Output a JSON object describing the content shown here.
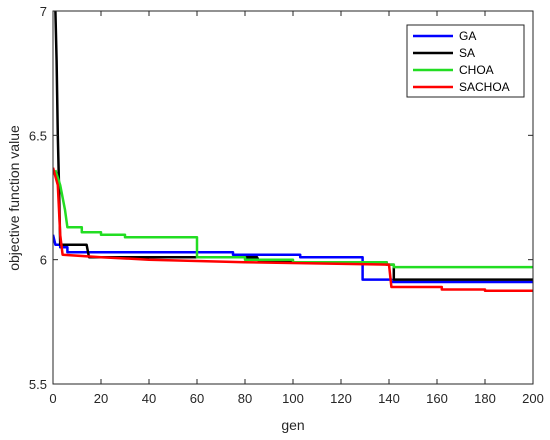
{
  "chart_data": {
    "type": "line",
    "xlabel": "gen",
    "ylabel": "objective function value",
    "xlim": [
      0,
      200
    ],
    "ylim": [
      5.5,
      7
    ],
    "xticks": [
      0,
      20,
      40,
      60,
      80,
      100,
      120,
      140,
      160,
      180,
      200
    ],
    "yticks": [
      5.5,
      6,
      6.5,
      7
    ],
    "ytick_labels": [
      "5.5",
      "6",
      "6.5",
      "7"
    ],
    "grid": false,
    "legend_position": "top-right",
    "series": [
      {
        "name": "GA",
        "color": "#0000ff",
        "points": [
          [
            0,
            6.1
          ],
          [
            1,
            6.06
          ],
          [
            3,
            6.06
          ],
          [
            3,
            6.05
          ],
          [
            6,
            6.05
          ],
          [
            6,
            6.03
          ],
          [
            75,
            6.03
          ],
          [
            75,
            6.02
          ],
          [
            103,
            6.02
          ],
          [
            103,
            6.01
          ],
          [
            129,
            6.01
          ],
          [
            129,
            5.92
          ],
          [
            141,
            5.92
          ],
          [
            141,
            5.91
          ],
          [
            200,
            5.91
          ]
        ]
      },
      {
        "name": "SA",
        "color": "#000000",
        "points": [
          [
            1,
            7.0
          ],
          [
            1.5,
            6.8
          ],
          [
            2,
            6.5
          ],
          [
            2.5,
            6.3
          ],
          [
            3,
            6.06
          ],
          [
            14,
            6.06
          ],
          [
            15,
            6.01
          ],
          [
            85,
            6.01
          ],
          [
            86,
            5.99
          ],
          [
            139,
            5.99
          ],
          [
            139,
            5.98
          ],
          [
            142,
            5.98
          ],
          [
            142,
            5.92
          ],
          [
            200,
            5.92
          ]
        ]
      },
      {
        "name": "CHOA",
        "color": "#22dd22",
        "points": [
          [
            1,
            6.36
          ],
          [
            3,
            6.3
          ],
          [
            5,
            6.2
          ],
          [
            6,
            6.13
          ],
          [
            12,
            6.13
          ],
          [
            12,
            6.11
          ],
          [
            20,
            6.11
          ],
          [
            20,
            6.1
          ],
          [
            30,
            6.1
          ],
          [
            30,
            6.09
          ],
          [
            60,
            6.09
          ],
          [
            60,
            6.01
          ],
          [
            80,
            6.01
          ],
          [
            80,
            6.0
          ],
          [
            100,
            6.0
          ],
          [
            100,
            5.99
          ],
          [
            139,
            5.99
          ],
          [
            139,
            5.98
          ],
          [
            142,
            5.98
          ],
          [
            142,
            5.97
          ],
          [
            200,
            5.97
          ]
        ]
      },
      {
        "name": "SACHOA",
        "color": "#ff0000",
        "points": [
          [
            0,
            6.37
          ],
          [
            2,
            6.3
          ],
          [
            3,
            6.1
          ],
          [
            4,
            6.02
          ],
          [
            20,
            6.01
          ],
          [
            40,
            6.0
          ],
          [
            80,
            5.99
          ],
          [
            140,
            5.98
          ],
          [
            141,
            5.89
          ],
          [
            162,
            5.89
          ],
          [
            162,
            5.88
          ],
          [
            180,
            5.88
          ],
          [
            180,
            5.875
          ],
          [
            200,
            5.875
          ]
        ]
      }
    ]
  }
}
